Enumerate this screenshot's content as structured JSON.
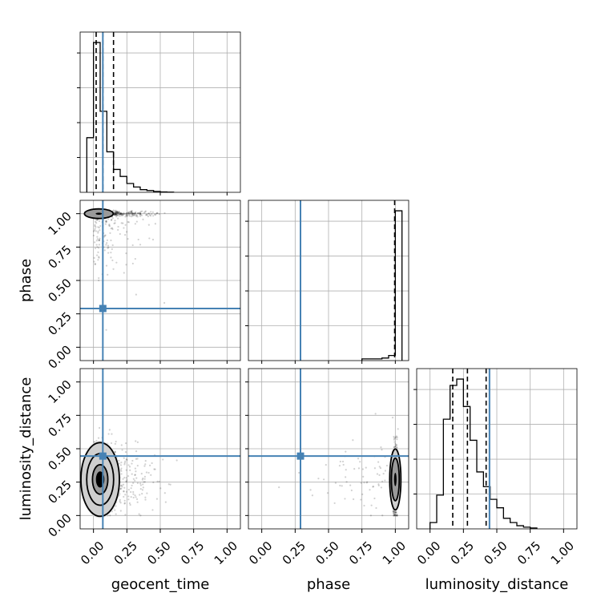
{
  "chart_data": {
    "type": "corner",
    "parameters": [
      "geocent_time",
      "phase",
      "luminosity_distance"
    ],
    "axis_range": [
      -0.1,
      1.1
    ],
    "ticks": [
      0.0,
      0.25,
      0.5,
      0.75,
      1.0
    ],
    "tick_labels": [
      "0.00",
      "0.25",
      "0.50",
      "0.75",
      "1.00"
    ],
    "grid": true,
    "truths": {
      "geocent_time": 0.07,
      "phase": 0.29,
      "luminosity_distance": 0.445
    },
    "truth_color": "#4682b4",
    "quantiles": {
      "geocent_time": [
        0.02,
        0.07,
        0.15
      ],
      "phase": [
        0.995
      ],
      "luminosity_distance": [
        0.17,
        0.28,
        0.42
      ]
    },
    "histograms": {
      "geocent_time": {
        "bin_edges": [
          -0.05,
          0.0,
          0.05,
          0.1,
          0.15,
          0.2,
          0.25,
          0.3,
          0.35,
          0.4,
          0.45,
          0.5,
          0.55,
          0.6
        ],
        "counts": [
          0.31,
          0.85,
          0.46,
          0.23,
          0.13,
          0.09,
          0.05,
          0.03,
          0.015,
          0.01,
          0.005,
          0.002,
          0.001
        ]
      },
      "phase": {
        "bin_edges": [
          0.75,
          0.8,
          0.85,
          0.9,
          0.95,
          1.0,
          1.05
        ],
        "counts": [
          0.01,
          0.01,
          0.01,
          0.015,
          0.03,
          0.88
        ]
      },
      "luminosity_distance": {
        "bin_edges": [
          0.0,
          0.05,
          0.1,
          0.15,
          0.2,
          0.25,
          0.3,
          0.35,
          0.4,
          0.45,
          0.5,
          0.55,
          0.6,
          0.65,
          0.7,
          0.75,
          0.8
        ],
        "counts": [
          0.03,
          0.16,
          0.52,
          0.68,
          0.71,
          0.58,
          0.42,
          0.27,
          0.2,
          0.14,
          0.1,
          0.05,
          0.03,
          0.015,
          0.008,
          0.004
        ]
      }
    },
    "scatter_panels": [
      {
        "x": "geocent_time",
        "y": "phase",
        "center": [
          0.04,
          1.0
        ],
        "contour_levels": 1
      },
      {
        "x": "geocent_time",
        "y": "luminosity_distance",
        "center": [
          0.05,
          0.27
        ],
        "contour_levels": 3
      },
      {
        "x": "phase",
        "y": "luminosity_distance",
        "center": [
          1.0,
          0.27
        ],
        "contour_levels": 2
      }
    ]
  }
}
